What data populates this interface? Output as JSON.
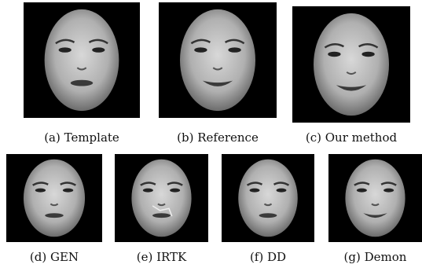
{
  "figures": [
    {
      "caption": "(a) Template"
    },
    {
      "caption": "(b) Reference"
    },
    {
      "caption": "(c) Our method"
    },
    {
      "caption": "(d) GEN"
    },
    {
      "caption": "(e) IRTK"
    },
    {
      "caption": "(f) DD"
    },
    {
      "caption": "(g) Demon"
    }
  ]
}
